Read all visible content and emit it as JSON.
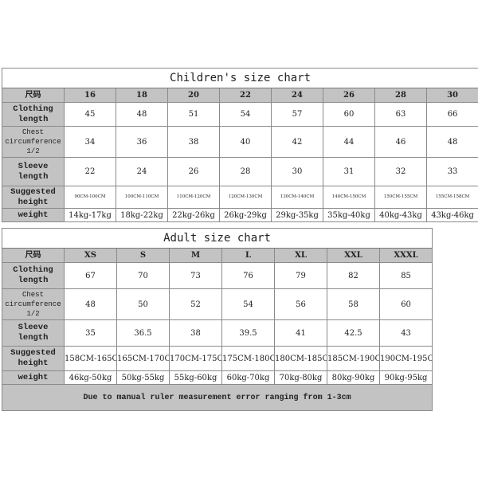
{
  "children": {
    "title": "Children's size chart",
    "header_label": "尺码",
    "sizes": [
      "16",
      "18",
      "20",
      "22",
      "24",
      "26",
      "28",
      "30"
    ],
    "rows": [
      {
        "label": "Clothing length",
        "values": [
          "45",
          "48",
          "51",
          "54",
          "57",
          "60",
          "63",
          "66"
        ]
      },
      {
        "label": "Chest circumference 1/2",
        "values": [
          "34",
          "36",
          "38",
          "40",
          "42",
          "44",
          "46",
          "48"
        ]
      },
      {
        "label": "Sleeve length",
        "values": [
          "22",
          "24",
          "26",
          "28",
          "30",
          "31",
          "32",
          "33"
        ]
      },
      {
        "label": "Suggested height",
        "values": [
          "90CM-100CM",
          "100CM-110CM",
          "110CM-120CM",
          "120CM-130CM",
          "130CM-140CM",
          "140CM-150CM",
          "150CM-155CM",
          "155CM-158CM"
        ]
      },
      {
        "label": "weight",
        "values": [
          "14kg-17kg",
          "18kg-22kg",
          "22kg-26kg",
          "26kg-29kg",
          "29kg-35kg",
          "35kg-40kg",
          "40kg-43kg",
          "43kg-46kg"
        ]
      }
    ]
  },
  "adult": {
    "title": "Adult size chart",
    "header_label": "尺码",
    "sizes": [
      "XS",
      "S",
      "M",
      "L",
      "XL",
      "XXL",
      "XXXL"
    ],
    "rows": [
      {
        "label": "Clothing length",
        "values": [
          "67",
          "70",
          "73",
          "76",
          "79",
          "82",
          "85"
        ]
      },
      {
        "label": "Chest circumference 1/2",
        "values": [
          "48",
          "50",
          "52",
          "54",
          "56",
          "58",
          "60"
        ]
      },
      {
        "label": "Sleeve length",
        "values": [
          "35",
          "36.5",
          "38",
          "39.5",
          "41",
          "42.5",
          "43"
        ]
      },
      {
        "label": "Suggested height",
        "values": [
          "158CM-165CM",
          "165CM-170CM",
          "170CM-175CM",
          "175CM-180CM",
          "180CM-185CM",
          "185CM-190CM",
          "190CM-195CM"
        ]
      },
      {
        "label": "weight",
        "values": [
          "46kg-50kg",
          "50kg-55kg",
          "55kg-60kg",
          "60kg-70kg",
          "70kg-80kg",
          "80kg-90kg",
          "90kg-95kg"
        ]
      }
    ],
    "note": "Due to manual ruler measurement error ranging from 1-3cm"
  },
  "colors": {
    "header_bg": "#c3c3c3",
    "border": "#8a8a8a"
  }
}
